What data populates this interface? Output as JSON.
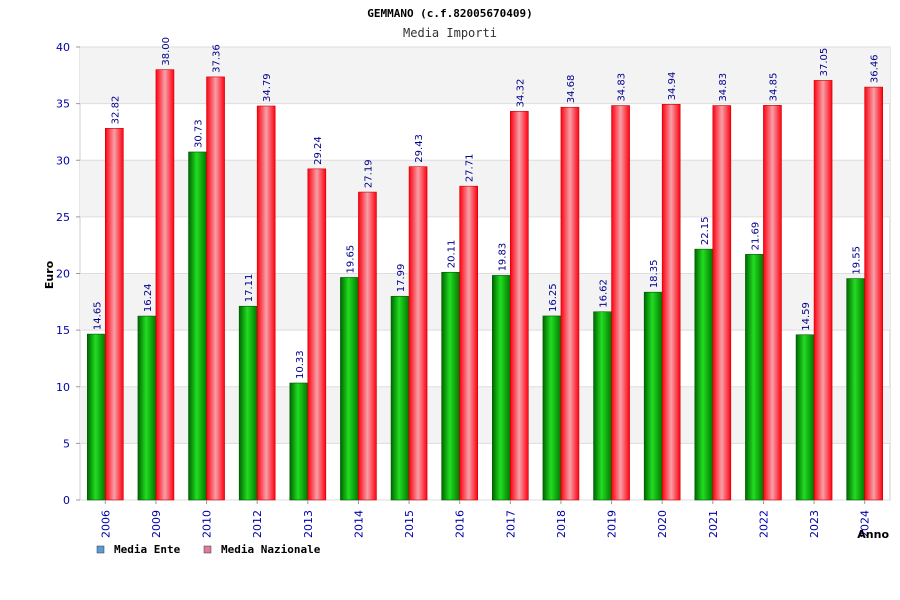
{
  "chart_data": {
    "type": "bar",
    "title": "GEMMANO (c.f.82005670409)",
    "subtitle": "Media Importi",
    "xlabel": "Anno",
    "ylabel": "Euro",
    "ylim": [
      0,
      40
    ],
    "yticks": [
      0,
      5,
      10,
      15,
      20,
      25,
      30,
      35,
      40
    ],
    "categories": [
      "2006",
      "2009",
      "2010",
      "2012",
      "2013",
      "2014",
      "2015",
      "2016",
      "2017",
      "2018",
      "2019",
      "2020",
      "2021",
      "2022",
      "2023",
      "2024"
    ],
    "series": [
      {
        "name": "Media Ente",
        "color": "#00c000",
        "values": [
          14.65,
          16.24,
          30.73,
          17.11,
          10.33,
          19.65,
          17.99,
          20.11,
          19.83,
          16.25,
          16.62,
          18.35,
          22.15,
          21.69,
          14.59,
          19.55
        ],
        "labels": [
          "14.65",
          "16.24",
          "30.73",
          "17.11",
          "10.33",
          "19.65",
          "17.99",
          "20.11",
          "19.83",
          "16.25",
          "16.62",
          "18.35",
          "22.15",
          "21.69",
          "14.59",
          "19.55"
        ]
      },
      {
        "name": "Media Nazionale",
        "color": "#ff2030",
        "values": [
          32.82,
          38.0,
          37.36,
          34.79,
          29.24,
          27.19,
          29.43,
          27.71,
          34.32,
          34.68,
          34.83,
          34.94,
          34.83,
          34.85,
          37.05,
          36.46
        ],
        "labels": [
          "32.82",
          "38.00",
          "37.36",
          "34.79",
          "29.24",
          "27.19",
          "29.43",
          "27.71",
          "34.32",
          "34.68",
          "34.83",
          "34.94",
          "34.83",
          "34.85",
          "37.05",
          "36.46"
        ]
      }
    ],
    "legend": {
      "placement": "bottom-left",
      "swatch_colors": [
        "#5b9bd5",
        "#e07aa0"
      ]
    },
    "grid": true
  }
}
